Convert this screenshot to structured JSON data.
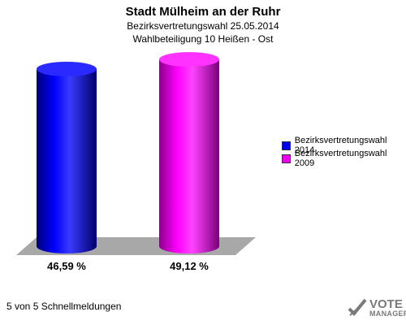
{
  "header": {
    "title": "Stadt Mülheim an der Ruhr",
    "subtitle_line1": "Bezirksvertretungswahl 25.05.2014",
    "subtitle_line2": "Wahlbeteiligung 10 Heißen - Ost"
  },
  "chart_data": {
    "type": "bar",
    "categories": [
      "Bezirksvertretungswahl 2014",
      "Bezirksvertretungswahl 2009"
    ],
    "values": [
      46.59,
      49.12
    ],
    "value_labels": [
      "46,59 %",
      "49,12 %"
    ],
    "colors": [
      "#0000ee",
      "#ee00ee"
    ],
    "ylim": [
      0,
      50
    ],
    "grid": false,
    "legend_position": "right"
  },
  "footer": {
    "note": "5 von 5 Schnellmeldungen",
    "brand_line1": "VOTE",
    "brand_line2": "MANAGER"
  }
}
